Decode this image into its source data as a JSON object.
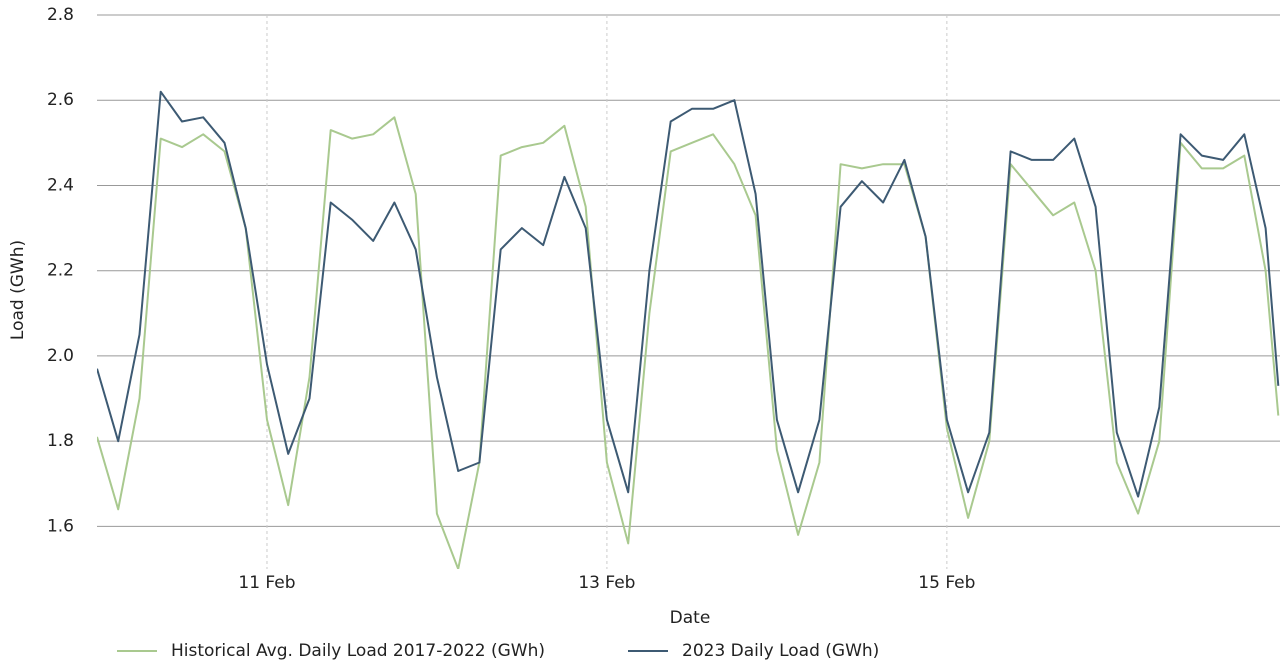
{
  "chart_data": {
    "type": "line",
    "xlabel": "Date",
    "ylabel": "Load (GWh)",
    "x": [
      10,
      10.125,
      10.25,
      10.375,
      10.5,
      10.625,
      10.75,
      10.875,
      11,
      11.125,
      11.25,
      11.375,
      11.5,
      11.625,
      11.75,
      11.875,
      12,
      12.125,
      12.25,
      12.375,
      12.5,
      12.625,
      12.75,
      12.875,
      13,
      13.125,
      13.25,
      13.375,
      13.5,
      13.625,
      13.75,
      13.875,
      14,
      14.125,
      14.25,
      14.375,
      14.5,
      14.625,
      14.75,
      14.875,
      15,
      15.125,
      15.25,
      15.375,
      15.5,
      15.625,
      15.75,
      15.875,
      16,
      16.125,
      16.25,
      16.375,
      16.5,
      16.625,
      16.75,
      16.875,
      16.95
    ],
    "series": [
      {
        "name": "Historical Avg. Daily Load 2017-2022 (GWh)",
        "color": "#a9c98f",
        "values": [
          1.81,
          1.64,
          1.9,
          2.51,
          2.49,
          2.52,
          2.48,
          2.3,
          1.85,
          1.65,
          1.95,
          2.53,
          2.51,
          2.52,
          2.56,
          2.38,
          1.63,
          1.5,
          1.75,
          2.47,
          2.49,
          2.5,
          2.54,
          2.35,
          1.75,
          1.56,
          2.1,
          2.48,
          2.5,
          2.52,
          2.45,
          2.33,
          1.78,
          1.58,
          1.75,
          2.45,
          2.44,
          2.45,
          2.45,
          2.28,
          1.83,
          1.62,
          1.8,
          2.45,
          2.39,
          2.33,
          2.36,
          2.2,
          1.75,
          1.63,
          1.8,
          2.5,
          2.44,
          2.44,
          2.47,
          2.2,
          1.86
        ]
      },
      {
        "name": "2023 Daily Load (GWh)",
        "color": "#3d5a73",
        "values": [
          1.97,
          1.8,
          2.05,
          2.62,
          2.55,
          2.56,
          2.5,
          2.3,
          1.98,
          1.77,
          1.9,
          2.36,
          2.32,
          2.27,
          2.36,
          2.25,
          1.95,
          1.73,
          1.75,
          2.25,
          2.3,
          2.26,
          2.42,
          2.3,
          1.85,
          1.68,
          2.2,
          2.55,
          2.58,
          2.58,
          2.6,
          2.38,
          1.85,
          1.68,
          1.85,
          2.35,
          2.41,
          2.36,
          2.46,
          2.28,
          1.85,
          1.68,
          1.82,
          2.48,
          2.46,
          2.46,
          2.51,
          2.35,
          1.82,
          1.67,
          1.88,
          2.52,
          2.47,
          2.46,
          2.52,
          2.3,
          1.93
        ]
      }
    ],
    "xlim": [
      10,
      16.96
    ],
    "xticks": [
      {
        "value": 11,
        "label": "11 Feb"
      },
      {
        "value": 13,
        "label": "13 Feb"
      },
      {
        "value": 15,
        "label": "15 Feb"
      }
    ],
    "ylim": [
      1.5,
      2.8
    ],
    "yticks": [
      1.6,
      1.8,
      {
        "value": 2,
        "label": "2.0"
      },
      2.2,
      2.4,
      2.6,
      2.8
    ],
    "grid": true,
    "legend": "bottom"
  }
}
